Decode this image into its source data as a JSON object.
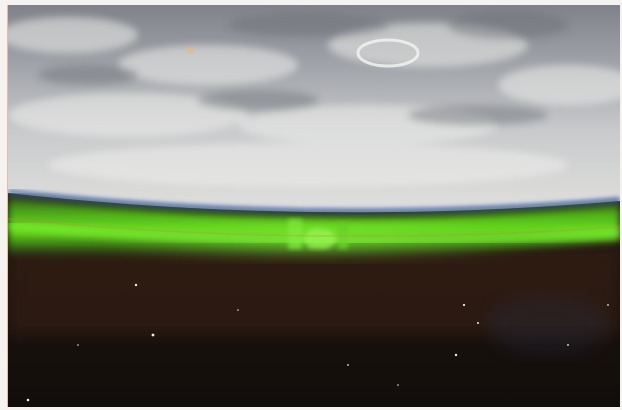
{
  "image": {
    "subject": "aurora-over-earth-limb",
    "colors": {
      "sky_dark": "#1a120d",
      "aurora_green": "#56d11a",
      "cloud_light": "#d4d6d8",
      "cloud_dark": "#8b8e94",
      "horizon_blue": "#3c5a9c"
    }
  }
}
